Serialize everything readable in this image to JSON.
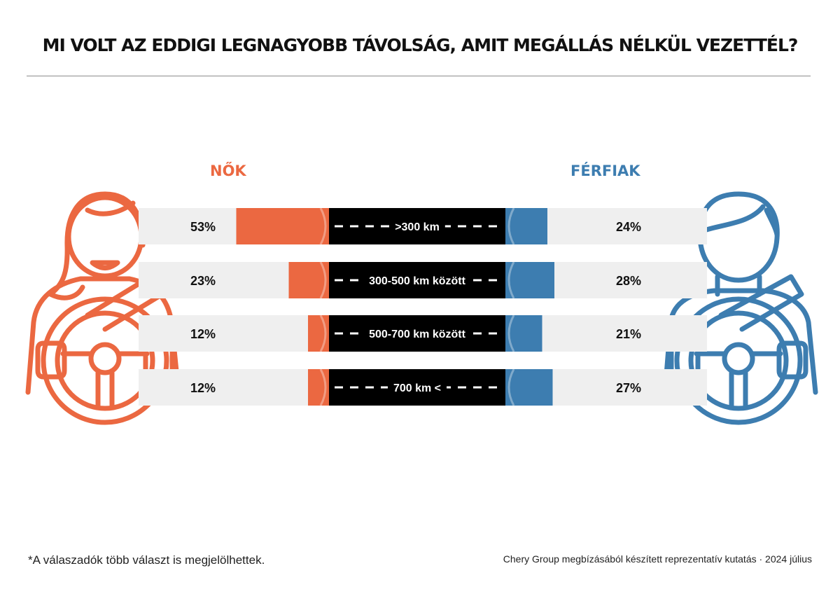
{
  "title": "MI VOLT AZ EDDIGI LEGNAGYOBB TÁVOLSÁG, AMIT MEGÁLLÁS NÉLKÜL VEZETTÉL?",
  "labels": {
    "women": "NŐK",
    "men": "FÉRFIAK"
  },
  "footnote": "*A válaszadók több választ is megjelölhettek.",
  "source": "Chery Group megbízásából készített reprezentatív kutatás · 2024 július",
  "colors": {
    "women": "#eb6841",
    "men": "#3d7db0",
    "road": "#000000",
    "row_bg": "#efefef",
    "text": "#111111"
  },
  "icons": {
    "women": "woman-driver-icon",
    "men": "man-driver-icon"
  },
  "chart_data": {
    "type": "bar",
    "categories": [
      ">300 km",
      "300-500 km között",
      "500-700 km között",
      "700 km <"
    ],
    "series": [
      {
        "name": "NŐK",
        "values": [
          53,
          23,
          12,
          12
        ],
        "labels": [
          "53%",
          "23%",
          "12%",
          "12%"
        ]
      },
      {
        "name": "FÉRFIAK",
        "values": [
          24,
          28,
          21,
          27
        ],
        "labels": [
          "24%",
          "28%",
          "21%",
          "27%"
        ]
      }
    ]
  }
}
